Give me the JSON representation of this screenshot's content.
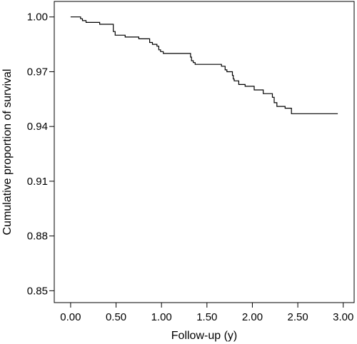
{
  "chart_data": {
    "type": "line",
    "title": "",
    "xlabel": "Follow-up (y)",
    "ylabel": "Cumulative proportion of survival",
    "xlim": [
      -0.18,
      3.12
    ],
    "ylim": [
      0.8435,
      1.0085
    ],
    "x_ticks": [
      0,
      0.5,
      1,
      1.5,
      2,
      2.5,
      3
    ],
    "x_tick_labels": [
      "0.00",
      "0.50",
      "1.00",
      "1.50",
      "2.00",
      "2.50",
      "3.00"
    ],
    "y_ticks": [
      0.85,
      0.88,
      0.91,
      0.94,
      0.97,
      1.0
    ],
    "y_tick_labels": [
      "0.85",
      "0.88",
      "0.91",
      "0.94",
      "0.97",
      "1.00"
    ],
    "grid": false,
    "legend": "none",
    "line_color": "#000000",
    "series": [
      {
        "step": "post",
        "x": [
          0.0,
          0.11,
          0.13,
          0.17,
          0.32,
          0.47,
          0.49,
          0.6,
          0.75,
          0.87,
          0.9,
          0.95,
          0.97,
          0.99,
          1.02,
          1.32,
          1.33,
          1.35,
          1.37,
          1.52,
          1.66,
          1.7,
          1.72,
          1.78,
          1.79,
          1.8,
          1.85,
          1.92,
          2.02,
          2.12,
          2.22,
          2.24,
          2.27,
          2.36,
          2.43,
          2.94
        ],
        "y": [
          1.0,
          0.999,
          0.998,
          0.997,
          0.996,
          0.992,
          0.99,
          0.989,
          0.988,
          0.986,
          0.985,
          0.984,
          0.982,
          0.981,
          0.98,
          0.978,
          0.976,
          0.975,
          0.974,
          0.974,
          0.973,
          0.971,
          0.97,
          0.968,
          0.966,
          0.965,
          0.963,
          0.962,
          0.96,
          0.958,
          0.956,
          0.953,
          0.951,
          0.95,
          0.947,
          0.947
        ]
      }
    ]
  }
}
